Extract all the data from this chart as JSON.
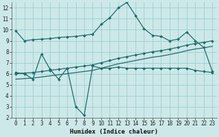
{
  "xlabel": "Humidex (Indice chaleur)",
  "bg_color": "#cde8e8",
  "grid_color": "#9ecece",
  "line_color": "#1e6b6b",
  "xlim": [
    -0.5,
    23.5
  ],
  "ylim": [
    2,
    12.5
  ],
  "xticks": [
    0,
    1,
    2,
    3,
    4,
    5,
    6,
    7,
    8,
    9,
    10,
    11,
    12,
    13,
    14,
    15,
    16,
    17,
    18,
    19,
    20,
    21,
    22,
    23
  ],
  "yticks": [
    2,
    3,
    4,
    5,
    6,
    7,
    8,
    9,
    10,
    11,
    12
  ],
  "line1_x": [
    0,
    1,
    2,
    3,
    4,
    5,
    6,
    7,
    8,
    9,
    10,
    11,
    12,
    13,
    14,
    15,
    16,
    17,
    18,
    19,
    20,
    21,
    22,
    23
  ],
  "line1_y": [
    9.9,
    9.0,
    9.1,
    9.15,
    9.2,
    9.3,
    9.35,
    9.4,
    9.5,
    9.6,
    10.5,
    11.1,
    12.0,
    12.5,
    11.3,
    10.1,
    9.5,
    9.4,
    9.0,
    9.15,
    9.8,
    9.0,
    8.4,
    6.2
  ],
  "line2_x": [
    0,
    1,
    2,
    3,
    4,
    5,
    6,
    7,
    8,
    9,
    10,
    11,
    12,
    13,
    14,
    15,
    16,
    17,
    18,
    19,
    20,
    21,
    22,
    23
  ],
  "line2_y": [
    6.0,
    6.05,
    6.1,
    6.2,
    6.3,
    6.4,
    6.5,
    6.6,
    6.7,
    6.8,
    7.0,
    7.2,
    7.4,
    7.55,
    7.7,
    7.85,
    8.0,
    8.1,
    8.25,
    8.4,
    8.6,
    8.75,
    8.85,
    9.0
  ],
  "line2b_x": [
    0,
    1,
    2,
    3,
    4,
    5,
    6,
    7,
    8,
    9,
    10,
    11,
    12,
    13,
    14,
    15,
    16,
    17,
    18,
    19,
    20,
    21,
    22,
    23
  ],
  "line2b_y": [
    5.5,
    5.55,
    5.6,
    5.7,
    5.8,
    5.9,
    6.0,
    6.1,
    6.2,
    6.3,
    6.5,
    6.7,
    6.9,
    7.05,
    7.2,
    7.35,
    7.5,
    7.6,
    7.75,
    7.9,
    8.1,
    8.25,
    8.35,
    8.5
  ],
  "line3_x": [
    0,
    1,
    2,
    3,
    4,
    5,
    6,
    7,
    8,
    9,
    10,
    11,
    12,
    13,
    14,
    15,
    16,
    17,
    18,
    19,
    20,
    21,
    22,
    23
  ],
  "line3_y": [
    6.1,
    6.0,
    5.5,
    7.8,
    6.4,
    5.5,
    6.5,
    3.0,
    2.2,
    6.7,
    6.5,
    6.5,
    6.6,
    6.5,
    6.5,
    6.5,
    6.5,
    6.5,
    6.5,
    6.5,
    6.5,
    6.3,
    6.2,
    6.1
  ],
  "tick_fontsize": 5.5,
  "xlabel_fontsize": 6.5
}
